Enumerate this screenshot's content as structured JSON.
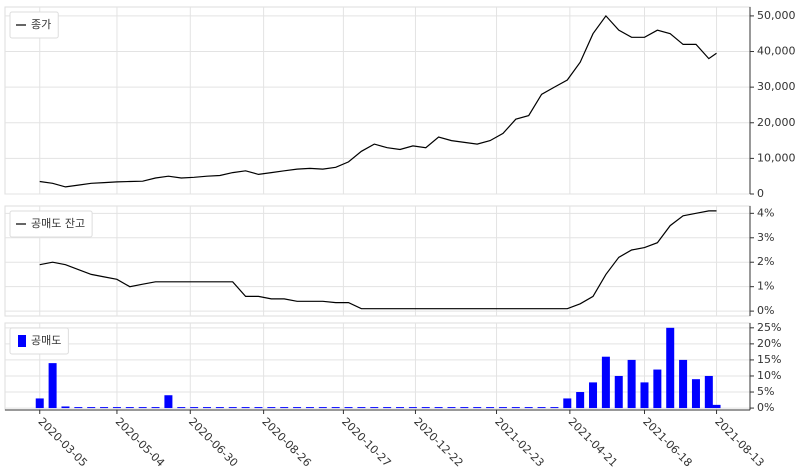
{
  "chart_data": [
    {
      "type": "line",
      "x": [
        "2020-03-05",
        "2020-03-15",
        "2020-03-25",
        "2020-04-04",
        "2020-04-14",
        "2020-04-24",
        "2020-05-04",
        "2020-05-14",
        "2020-05-24",
        "2020-06-03",
        "2020-06-13",
        "2020-06-23",
        "2020-07-03",
        "2020-07-13",
        "2020-07-23",
        "2020-08-02",
        "2020-08-12",
        "2020-08-22",
        "2020-09-01",
        "2020-09-11",
        "2020-09-21",
        "2020-10-01",
        "2020-10-11",
        "2020-10-21",
        "2020-10-31",
        "2020-11-10",
        "2020-11-20",
        "2020-11-30",
        "2020-12-10",
        "2020-12-20",
        "2020-12-30",
        "2021-01-09",
        "2021-01-19",
        "2021-01-29",
        "2021-02-08",
        "2021-02-18",
        "2021-02-28",
        "2021-03-10",
        "2021-03-20",
        "2021-03-30",
        "2021-04-09",
        "2021-04-19",
        "2021-04-29",
        "2021-05-09",
        "2021-05-19",
        "2021-05-29",
        "2021-06-08",
        "2021-06-18",
        "2021-06-28",
        "2021-07-08",
        "2021-07-18",
        "2021-07-28",
        "2021-08-07",
        "2021-08-13"
      ],
      "xlim": [
        "2020-02-07",
        "2021-09-08"
      ],
      "series": [
        {
          "name": "종가",
          "color": "#000000",
          "values": [
            3500,
            3000,
            2000,
            2500,
            3000,
            3200,
            3400,
            3500,
            3600,
            4500,
            5000,
            4500,
            4700,
            5000,
            5200,
            6000,
            6500,
            5500,
            6000,
            6500,
            7000,
            7200,
            7000,
            7500,
            9000,
            12000,
            14000,
            13000,
            12500,
            13500,
            13000,
            16000,
            15000,
            14500,
            14000,
            15000,
            17000,
            21000,
            22000,
            28000,
            30000,
            32000,
            37000,
            45000,
            50000,
            46000,
            44000,
            44000,
            46000,
            45000,
            42000,
            42000,
            38000,
            39500
          ]
        }
      ],
      "ylim": [
        0,
        52500
      ],
      "yticks": [
        0,
        {
          "value": 10000,
          "label": "10,000"
        },
        {
          "value": 20000,
          "label": "20,000"
        },
        {
          "value": 30000,
          "label": "30,000"
        },
        {
          "value": 40000,
          "label": "40,000"
        },
        {
          "value": 50000,
          "label": "50,000"
        }
      ],
      "grid": true,
      "legend": "top-left"
    },
    {
      "type": "line",
      "x": [
        "2020-03-05",
        "2020-03-15",
        "2020-03-25",
        "2020-04-04",
        "2020-04-14",
        "2020-04-24",
        "2020-05-04",
        "2020-05-14",
        "2020-05-24",
        "2020-06-03",
        "2020-06-13",
        "2020-06-23",
        "2020-07-03",
        "2020-07-13",
        "2020-07-23",
        "2020-08-02",
        "2020-08-12",
        "2020-08-22",
        "2020-09-01",
        "2020-09-11",
        "2020-09-21",
        "2020-10-01",
        "2020-10-11",
        "2020-10-21",
        "2020-10-31",
        "2020-11-10",
        "2020-11-20",
        "2020-11-30",
        "2020-12-10",
        "2020-12-20",
        "2020-12-30",
        "2021-01-09",
        "2021-01-19",
        "2021-01-29",
        "2021-02-08",
        "2021-02-18",
        "2021-02-28",
        "2021-03-10",
        "2021-03-20",
        "2021-03-30",
        "2021-04-09",
        "2021-04-19",
        "2021-04-29",
        "2021-05-09",
        "2021-05-19",
        "2021-05-29",
        "2021-06-08",
        "2021-06-18",
        "2021-06-28",
        "2021-07-08",
        "2021-07-18",
        "2021-07-28",
        "2021-08-07",
        "2021-08-13"
      ],
      "xlim": [
        "2020-02-07",
        "2021-09-08"
      ],
      "series": [
        {
          "name": "공매도 잔고",
          "color": "#000000",
          "values": [
            1.9,
            2.0,
            1.9,
            1.7,
            1.5,
            1.4,
            1.3,
            1.0,
            1.1,
            1.2,
            1.2,
            1.2,
            1.2,
            1.2,
            1.2,
            1.2,
            0.6,
            0.6,
            0.5,
            0.5,
            0.4,
            0.4,
            0.4,
            0.35,
            0.35,
            0.1,
            0.1,
            0.1,
            0.1,
            0.1,
            0.1,
            0.1,
            0.1,
            0.1,
            0.1,
            0.1,
            0.1,
            0.1,
            0.1,
            0.1,
            0.1,
            0.1,
            0.3,
            0.6,
            1.5,
            2.2,
            2.5,
            2.6,
            2.8,
            3.5,
            3.9,
            4.0,
            4.1,
            4.1
          ]
        }
      ],
      "ylim": [
        -0.2,
        4.3
      ],
      "yticks": [
        {
          "value": 0,
          "label": "0%"
        },
        {
          "value": 1,
          "label": "1%"
        },
        {
          "value": 2,
          "label": "2%"
        },
        {
          "value": 3,
          "label": "3%"
        },
        {
          "value": 4,
          "label": "4%"
        }
      ],
      "grid": true,
      "legend": "top-left"
    },
    {
      "type": "bar",
      "x": [
        "2020-03-05",
        "2020-03-15",
        "2020-03-25",
        "2020-04-04",
        "2020-04-14",
        "2020-04-24",
        "2020-05-04",
        "2020-05-14",
        "2020-05-24",
        "2020-06-03",
        "2020-06-13",
        "2020-06-23",
        "2020-07-03",
        "2020-07-13",
        "2020-07-23",
        "2020-08-02",
        "2020-08-12",
        "2020-08-22",
        "2020-09-01",
        "2020-09-11",
        "2020-09-21",
        "2020-10-01",
        "2020-10-11",
        "2020-10-21",
        "2020-10-31",
        "2020-11-10",
        "2020-11-20",
        "2020-11-30",
        "2020-12-10",
        "2020-12-20",
        "2020-12-30",
        "2021-01-09",
        "2021-01-19",
        "2021-01-29",
        "2021-02-08",
        "2021-02-18",
        "2021-02-28",
        "2021-03-10",
        "2021-03-20",
        "2021-03-30",
        "2021-04-09",
        "2021-04-19",
        "2021-04-29",
        "2021-05-09",
        "2021-05-19",
        "2021-05-29",
        "2021-06-08",
        "2021-06-18",
        "2021-06-28",
        "2021-07-08",
        "2021-07-18",
        "2021-07-28",
        "2021-08-07",
        "2021-08-13"
      ],
      "xlim": [
        "2020-02-07",
        "2021-09-08"
      ],
      "xticks": [
        "2020-03-05",
        "2020-05-04",
        "2020-06-30",
        "2020-08-26",
        "2020-10-27",
        "2020-12-22",
        "2021-02-23",
        "2021-04-21",
        "2021-06-18",
        "2021-08-13"
      ],
      "series": [
        {
          "name": "공매도",
          "color": "#0000ff",
          "values": [
            3,
            14,
            0.5,
            0.3,
            0.3,
            0.3,
            0.3,
            0.3,
            0.3,
            0.3,
            4,
            0.3,
            0.3,
            0.3,
            0.3,
            0.3,
            0.3,
            0.3,
            0.3,
            0.3,
            0.3,
            0.3,
            0.3,
            0.3,
            0.3,
            0.3,
            0.3,
            0.3,
            0.3,
            0.3,
            0.3,
            0.3,
            0.3,
            0.3,
            0.3,
            0.3,
            0.3,
            0.3,
            0.3,
            0.3,
            0.3,
            3,
            5,
            8,
            16,
            10,
            15,
            8,
            12,
            25,
            15,
            9,
            10,
            1
          ]
        }
      ],
      "ylim": [
        -0.6,
        26.5
      ],
      "yticks": [
        {
          "value": 0,
          "label": "0%"
        },
        {
          "value": 5,
          "label": "5%"
        },
        {
          "value": 10,
          "label": "10%"
        },
        {
          "value": 15,
          "label": "15%"
        },
        {
          "value": 20,
          "label": "20%"
        },
        {
          "value": 25,
          "label": "25%"
        }
      ],
      "grid": true,
      "legend": "top-left"
    }
  ]
}
